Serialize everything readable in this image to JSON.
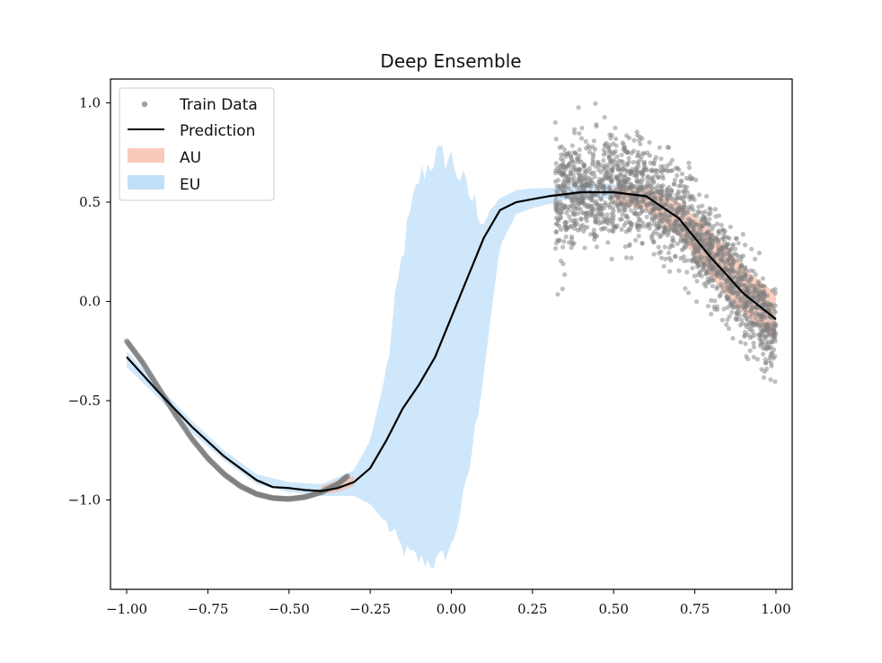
{
  "chart_data": {
    "type": "line",
    "title": "Deep Ensemble",
    "xlabel": "",
    "ylabel": "",
    "xlim": [
      -1.05,
      1.05
    ],
    "ylim": [
      -1.45,
      1.12
    ],
    "xticks": [
      -1.0,
      -0.75,
      -0.5,
      -0.25,
      0.0,
      0.25,
      0.5,
      0.75,
      1.0
    ],
    "xtick_labels": [
      "−1.00",
      "−0.75",
      "−0.50",
      "−0.25",
      "0.00",
      "0.25",
      "0.50",
      "0.75",
      "1.00"
    ],
    "yticks": [
      1.0,
      0.5,
      0.0,
      -0.5,
      -1.0
    ],
    "ytick_labels": [
      "1.0",
      "0.5",
      "0.0",
      "−0.5",
      "−1.0"
    ],
    "legend": {
      "position": "upper-left",
      "entries": [
        "Train Data",
        "Prediction",
        "AU",
        "EU"
      ]
    },
    "colors": {
      "train_data": "#808080",
      "prediction": "#000000",
      "au": "#f7b49b",
      "eu": "#a7d3f5"
    },
    "series": [
      {
        "name": "Train Data",
        "kind": "scatter",
        "segments": [
          {
            "x_range": [
              -1.0,
              -0.32
            ],
            "x": [
              -1.0,
              -0.95,
              -0.9,
              -0.85,
              -0.8,
              -0.75,
              -0.7,
              -0.65,
              -0.6,
              -0.55,
              -0.5,
              -0.45,
              -0.4,
              -0.35,
              -0.32
            ],
            "y": [
              -0.2,
              -0.31,
              -0.44,
              -0.57,
              -0.69,
              -0.79,
              -0.87,
              -0.93,
              -0.97,
              -0.99,
              -0.995,
              -0.985,
              -0.96,
              -0.92,
              -0.88
            ],
            "noise": 0.0
          },
          {
            "x_range": [
              0.32,
              1.0
            ],
            "x": [
              0.32,
              0.4,
              0.5,
              0.6,
              0.7,
              0.8,
              0.9,
              1.0
            ],
            "y_center": [
              0.52,
              0.55,
              0.56,
              0.53,
              0.44,
              0.25,
              0.03,
              -0.18
            ],
            "spread": [
              0.14,
              0.14,
              0.14,
              0.13,
              0.12,
              0.11,
              0.11,
              0.11
            ],
            "y_min": -0.65,
            "y_max": 1.0,
            "count": 1900
          }
        ]
      },
      {
        "name": "Prediction",
        "kind": "line",
        "x": [
          -1.0,
          -0.9,
          -0.8,
          -0.7,
          -0.6,
          -0.55,
          -0.5,
          -0.45,
          -0.4,
          -0.35,
          -0.3,
          -0.25,
          -0.2,
          -0.15,
          -0.1,
          -0.05,
          0.0,
          0.05,
          0.1,
          0.15,
          0.2,
          0.25,
          0.3,
          0.4,
          0.5,
          0.6,
          0.7,
          0.8,
          0.9,
          1.0
        ],
        "y": [
          -0.28,
          -0.46,
          -0.63,
          -0.78,
          -0.9,
          -0.935,
          -0.94,
          -0.95,
          -0.955,
          -0.94,
          -0.91,
          -0.84,
          -0.7,
          -0.54,
          -0.42,
          -0.28,
          -0.08,
          0.12,
          0.32,
          0.46,
          0.5,
          0.515,
          0.53,
          0.55,
          0.55,
          0.53,
          0.42,
          0.22,
          0.04,
          -0.09
        ]
      },
      {
        "name": "AU",
        "kind": "band",
        "x": [
          -0.4,
          -0.35,
          -0.3,
          0.5,
          0.6,
          0.7,
          0.8,
          0.9,
          1.0
        ],
        "lower": [
          -0.97,
          -0.96,
          -0.93,
          0.5,
          0.46,
          0.33,
          0.12,
          -0.06,
          -0.2
        ],
        "upper": [
          -0.93,
          -0.9,
          -0.88,
          0.58,
          0.57,
          0.5,
          0.36,
          0.17,
          0.04
        ]
      },
      {
        "name": "EU",
        "kind": "band",
        "x": [
          -1.0,
          -0.9,
          -0.8,
          -0.7,
          -0.6,
          -0.5,
          -0.4,
          -0.3,
          -0.25,
          -0.2,
          -0.15,
          -0.1,
          -0.05,
          0.0,
          0.05,
          0.1,
          0.15,
          0.2,
          0.25,
          0.3,
          0.35,
          0.4,
          0.5,
          0.6,
          0.7,
          0.8,
          0.9,
          1.0
        ],
        "lower": [
          -0.33,
          -0.49,
          -0.66,
          -0.8,
          -0.92,
          -0.96,
          -0.98,
          -0.98,
          -1.02,
          -1.12,
          -1.25,
          -1.3,
          -1.32,
          -1.24,
          -0.9,
          -0.35,
          0.28,
          0.44,
          0.47,
          0.49,
          0.51,
          0.52,
          0.52,
          0.5,
          0.38,
          0.18,
          0.0,
          -0.14
        ],
        "upper": [
          -0.25,
          -0.43,
          -0.6,
          -0.75,
          -0.87,
          -0.91,
          -0.92,
          -0.85,
          -0.7,
          -0.35,
          0.25,
          0.62,
          0.73,
          0.72,
          0.55,
          0.42,
          0.52,
          0.56,
          0.57,
          0.57,
          0.58,
          0.59,
          0.59,
          0.57,
          0.47,
          0.27,
          0.08,
          -0.04
        ]
      }
    ]
  }
}
